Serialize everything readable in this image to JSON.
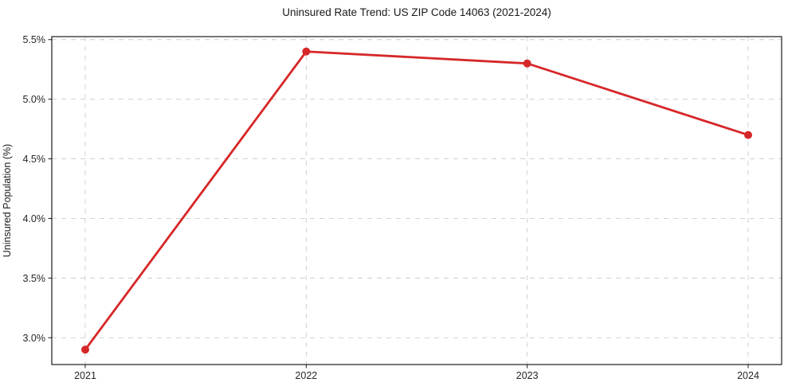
{
  "figure": {
    "background": "#ffffff"
  },
  "chart_data": {
    "type": "line",
    "title": "Uninsured Rate Trend: US ZIP Code 14063 (2021-2024)",
    "xlabel": "",
    "ylabel": "Uninsured Population (%)",
    "categories": [
      "2021",
      "2022",
      "2023",
      "2024"
    ],
    "series": [
      {
        "name": "Uninsured rate",
        "values": [
          2.9,
          5.4,
          5.3,
          4.7
        ]
      }
    ],
    "ylim": [
      2.775,
      5.525
    ],
    "yticks": [
      3.0,
      3.5,
      4.0,
      4.5,
      5.0,
      5.5
    ],
    "ytick_labels": [
      "3.0%",
      "3.5%",
      "4.0%",
      "4.5%",
      "5.0%",
      "5.5%"
    ],
    "grid": true,
    "grid_style": "dashed",
    "legend": "none",
    "line_color": "#d62728",
    "marker": "circle",
    "grid_color": "#cccccc",
    "spine_color": "#1a1a1a",
    "plot_background": "#ffffff"
  }
}
